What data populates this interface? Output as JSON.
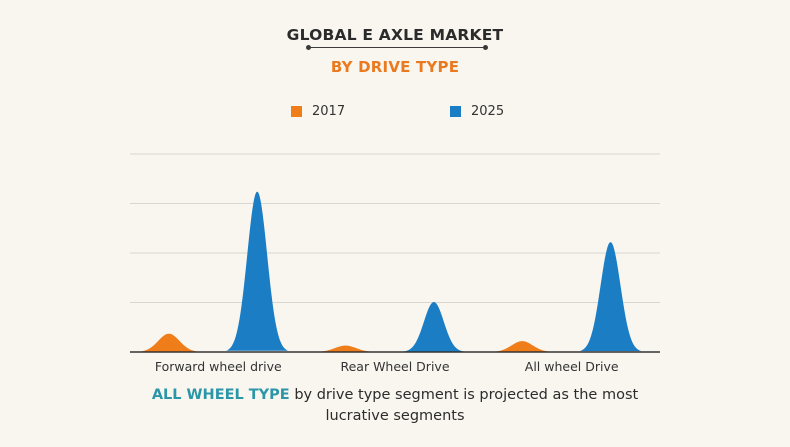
{
  "header": {
    "title": "GLOBAL E AXLE MARKET",
    "subtitle": "BY DRIVE TYPE"
  },
  "colors": {
    "series_2017": "#ef7d1a",
    "series_2025": "#1b7dc4",
    "highlight": "#2a96a8"
  },
  "chart_data": {
    "type": "area",
    "categories": [
      "Forward wheel drive",
      "Rear Wheel Drive",
      "All wheel Drive"
    ],
    "series": [
      {
        "name": "2017",
        "values": [
          0.37,
          0.13,
          0.22
        ]
      },
      {
        "name": "2025",
        "values": [
          3.24,
          1.01,
          2.22
        ]
      }
    ],
    "ylim": [
      0,
      4
    ],
    "grid": true,
    "legend": "top-center",
    "xlabel": "",
    "ylabel": ""
  },
  "caption": {
    "highlight": "ALL WHEEL TYPE",
    "text": " by drive type segment is projected as the most lucrative segments"
  }
}
